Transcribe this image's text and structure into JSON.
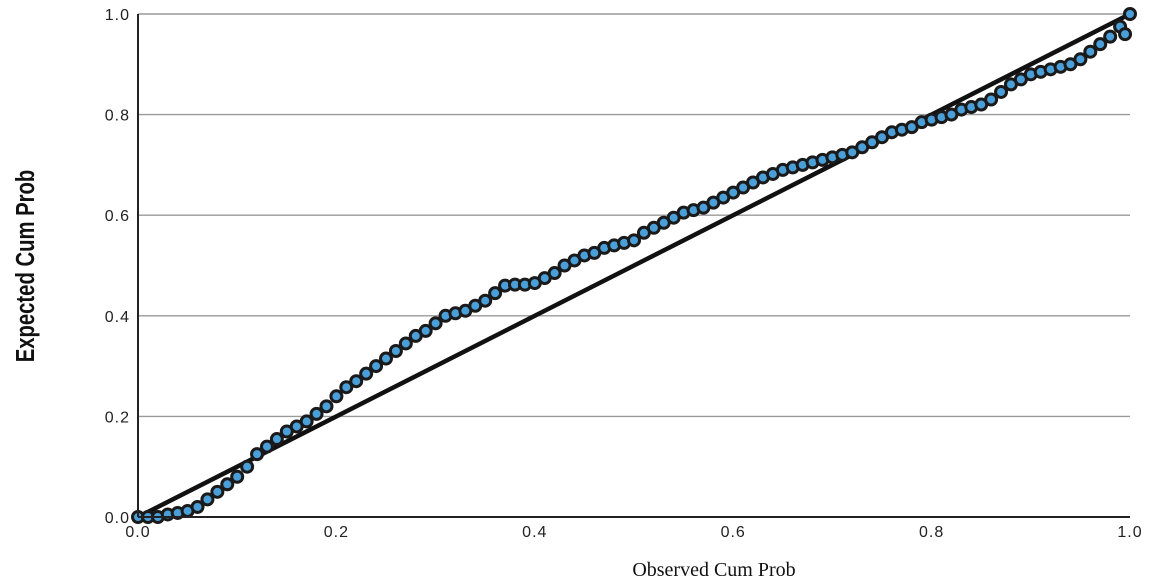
{
  "chart_data": {
    "type": "scatter",
    "title": "",
    "xlabel": "Observed Cum Prob",
    "ylabel": "Expected Cum Prob",
    "xlim": [
      0,
      1
    ],
    "ylim": [
      0,
      1
    ],
    "x_ticks": [
      "0.0",
      "0.2",
      "0.4",
      "0.6",
      "0.8",
      "1.0"
    ],
    "y_ticks": [
      "0.0",
      "0.2",
      "0.4",
      "0.6",
      "0.8",
      "1.0"
    ],
    "grid": "horizontal",
    "reference_line": {
      "from": [
        0,
        0
      ],
      "to": [
        1,
        1
      ],
      "color": "#111111"
    },
    "marker_fill": "#4a9fd8",
    "marker_edge": "#1a1a1a",
    "series": [
      {
        "points": [
          [
            0.0,
            0.0
          ],
          [
            0.01,
            0.0
          ],
          [
            0.02,
            0.0
          ],
          [
            0.03,
            0.005
          ],
          [
            0.04,
            0.008
          ],
          [
            0.05,
            0.012
          ],
          [
            0.06,
            0.02
          ],
          [
            0.07,
            0.035
          ],
          [
            0.08,
            0.05
          ],
          [
            0.09,
            0.065
          ],
          [
            0.1,
            0.08
          ],
          [
            0.11,
            0.1
          ],
          [
            0.12,
            0.125
          ],
          [
            0.13,
            0.14
          ],
          [
            0.14,
            0.155
          ],
          [
            0.15,
            0.17
          ],
          [
            0.16,
            0.18
          ],
          [
            0.17,
            0.19
          ],
          [
            0.18,
            0.205
          ],
          [
            0.19,
            0.22
          ],
          [
            0.2,
            0.24
          ],
          [
            0.21,
            0.258
          ],
          [
            0.22,
            0.27
          ],
          [
            0.23,
            0.285
          ],
          [
            0.24,
            0.3
          ],
          [
            0.25,
            0.315
          ],
          [
            0.26,
            0.33
          ],
          [
            0.27,
            0.345
          ],
          [
            0.28,
            0.36
          ],
          [
            0.29,
            0.37
          ],
          [
            0.3,
            0.385
          ],
          [
            0.31,
            0.4
          ],
          [
            0.32,
            0.405
          ],
          [
            0.33,
            0.41
          ],
          [
            0.34,
            0.42
          ],
          [
            0.35,
            0.43
          ],
          [
            0.36,
            0.445
          ],
          [
            0.37,
            0.46
          ],
          [
            0.38,
            0.462
          ],
          [
            0.39,
            0.462
          ],
          [
            0.4,
            0.465
          ],
          [
            0.41,
            0.475
          ],
          [
            0.42,
            0.485
          ],
          [
            0.43,
            0.5
          ],
          [
            0.44,
            0.51
          ],
          [
            0.45,
            0.52
          ],
          [
            0.46,
            0.525
          ],
          [
            0.47,
            0.535
          ],
          [
            0.48,
            0.54
          ],
          [
            0.49,
            0.545
          ],
          [
            0.5,
            0.55
          ],
          [
            0.51,
            0.565
          ],
          [
            0.52,
            0.575
          ],
          [
            0.53,
            0.585
          ],
          [
            0.54,
            0.595
          ],
          [
            0.55,
            0.605
          ],
          [
            0.56,
            0.61
          ],
          [
            0.57,
            0.615
          ],
          [
            0.58,
            0.625
          ],
          [
            0.59,
            0.635
          ],
          [
            0.6,
            0.645
          ],
          [
            0.61,
            0.655
          ],
          [
            0.62,
            0.665
          ],
          [
            0.63,
            0.675
          ],
          [
            0.64,
            0.682
          ],
          [
            0.65,
            0.69
          ],
          [
            0.66,
            0.695
          ],
          [
            0.67,
            0.7
          ],
          [
            0.68,
            0.705
          ],
          [
            0.69,
            0.71
          ],
          [
            0.7,
            0.715
          ],
          [
            0.71,
            0.72
          ],
          [
            0.72,
            0.725
          ],
          [
            0.73,
            0.735
          ],
          [
            0.74,
            0.745
          ],
          [
            0.75,
            0.755
          ],
          [
            0.76,
            0.765
          ],
          [
            0.77,
            0.77
          ],
          [
            0.78,
            0.775
          ],
          [
            0.79,
            0.785
          ],
          [
            0.8,
            0.79
          ],
          [
            0.81,
            0.795
          ],
          [
            0.82,
            0.8
          ],
          [
            0.83,
            0.81
          ],
          [
            0.84,
            0.815
          ],
          [
            0.85,
            0.82
          ],
          [
            0.86,
            0.83
          ],
          [
            0.87,
            0.845
          ],
          [
            0.88,
            0.86
          ],
          [
            0.89,
            0.87
          ],
          [
            0.9,
            0.88
          ],
          [
            0.91,
            0.885
          ],
          [
            0.92,
            0.89
          ],
          [
            0.93,
            0.895
          ],
          [
            0.94,
            0.9
          ],
          [
            0.95,
            0.91
          ],
          [
            0.96,
            0.925
          ],
          [
            0.97,
            0.94
          ],
          [
            0.98,
            0.955
          ],
          [
            0.99,
            0.975
          ],
          [
            0.995,
            0.96
          ],
          [
            1.0,
            1.0
          ]
        ]
      }
    ]
  }
}
